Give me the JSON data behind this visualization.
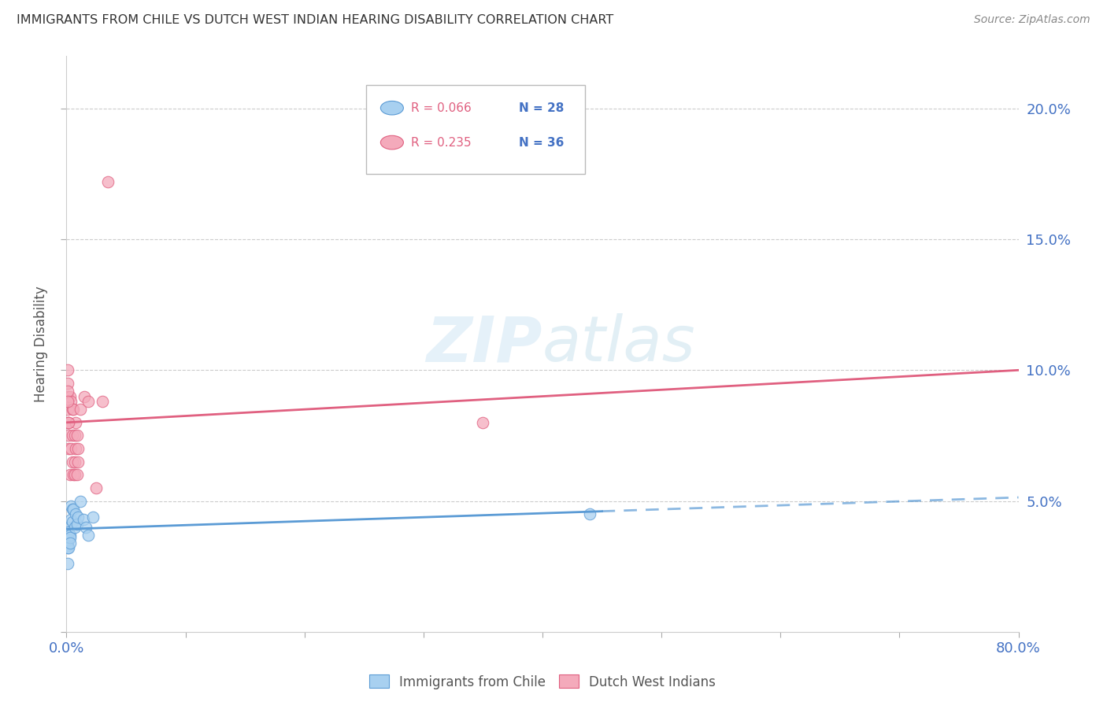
{
  "title": "IMMIGRANTS FROM CHILE VS DUTCH WEST INDIAN HEARING DISABILITY CORRELATION CHART",
  "source": "Source: ZipAtlas.com",
  "ylabel": "Hearing Disability",
  "yticks": [
    0.0,
    0.05,
    0.1,
    0.15,
    0.2
  ],
  "ytick_labels": [
    "",
    "5.0%",
    "10.0%",
    "15.0%",
    "20.0%"
  ],
  "xlim": [
    0.0,
    0.8
  ],
  "ylim": [
    0.0,
    0.22
  ],
  "legend_r1": "R = 0.066",
  "legend_n1": "N = 28",
  "legend_r2": "R = 0.235",
  "legend_n2": "N = 36",
  "legend_label1": "Immigrants from Chile",
  "legend_label2": "Dutch West Indians",
  "color_blue": "#A8D0F0",
  "color_pink": "#F4AABB",
  "color_blue_line": "#5B9BD5",
  "color_pink_line": "#E06080",
  "color_axis_labels": "#4472C4",
  "watermark_color": "#D5E8F5",
  "chile_x": [
    0.001,
    0.001,
    0.001,
    0.001,
    0.001,
    0.001,
    0.002,
    0.002,
    0.002,
    0.003,
    0.003,
    0.003,
    0.004,
    0.004,
    0.005,
    0.005,
    0.006,
    0.007,
    0.008,
    0.009,
    0.01,
    0.012,
    0.014,
    0.016,
    0.018,
    0.022,
    0.44,
    0.001
  ],
  "chile_y": [
    0.036,
    0.038,
    0.033,
    0.04,
    0.035,
    0.032,
    0.038,
    0.035,
    0.032,
    0.037,
    0.036,
    0.034,
    0.048,
    0.043,
    0.047,
    0.042,
    0.047,
    0.04,
    0.045,
    0.041,
    0.044,
    0.05,
    0.043,
    0.04,
    0.037,
    0.044,
    0.045,
    0.026
  ],
  "dutch_x": [
    0.001,
    0.001,
    0.001,
    0.001,
    0.001,
    0.002,
    0.002,
    0.002,
    0.003,
    0.003,
    0.004,
    0.004,
    0.005,
    0.005,
    0.005,
    0.006,
    0.006,
    0.007,
    0.007,
    0.007,
    0.008,
    0.008,
    0.009,
    0.009,
    0.01,
    0.01,
    0.012,
    0.015,
    0.018,
    0.025,
    0.03,
    0.035,
    0.35,
    0.001,
    0.001,
    0.002
  ],
  "dutch_y": [
    0.1,
    0.085,
    0.095,
    0.09,
    0.08,
    0.08,
    0.075,
    0.07,
    0.09,
    0.06,
    0.088,
    0.07,
    0.085,
    0.075,
    0.065,
    0.085,
    0.06,
    0.075,
    0.065,
    0.06,
    0.08,
    0.07,
    0.075,
    0.06,
    0.07,
    0.065,
    0.085,
    0.09,
    0.088,
    0.055,
    0.088,
    0.172,
    0.08,
    0.092,
    0.088,
    0.08
  ],
  "xtick_positions": [
    0.0,
    0.1,
    0.2,
    0.3,
    0.4,
    0.5,
    0.6,
    0.7,
    0.8
  ],
  "num_xticks": 9
}
